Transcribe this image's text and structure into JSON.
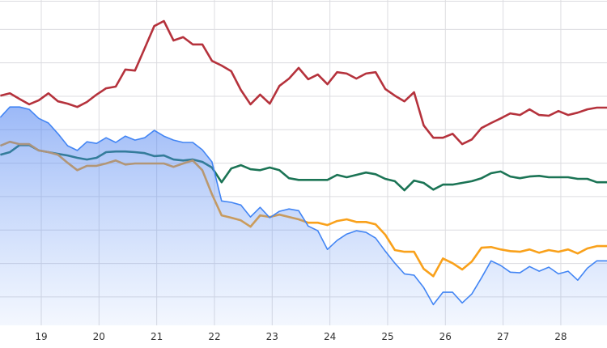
{
  "chart_data": {
    "type": "line",
    "title": "",
    "xlabel": "",
    "ylabel": "",
    "x_start": 18.29,
    "x_step": 0.1667,
    "xlim": [
      18.285,
      28.8
    ],
    "ylim": [
      1.5,
      98.8
    ],
    "grid": true,
    "x_ticks": [
      19,
      20,
      21,
      22,
      23,
      24,
      25,
      26,
      27,
      28
    ],
    "x_tick_labels": [
      "19",
      "20",
      "21",
      "22",
      "23",
      "24",
      "25",
      "26",
      "27",
      "28"
    ],
    "y_gridlines": [
      10,
      20,
      30,
      40,
      50,
      60,
      70,
      80,
      90
    ],
    "series": [
      {
        "name": "red",
        "kind": "line",
        "color": "#b5323c",
        "values": [
          70.2,
          70.9,
          69.2,
          67.6,
          68.8,
          70.9,
          68.5,
          67.8,
          66.8,
          68.3,
          70.5,
          72.4,
          72.9,
          78.0,
          77.7,
          84.3,
          91.0,
          92.5,
          86.7,
          87.7,
          85.5,
          85.5,
          80.6,
          79.2,
          77.5,
          71.9,
          67.6,
          70.5,
          67.8,
          73.1,
          75.3,
          78.5,
          75.1,
          76.5,
          73.6,
          77.2,
          76.8,
          75.3,
          76.8,
          77.2,
          72.2,
          70.2,
          68.5,
          71.2,
          61.3,
          57.6,
          57.6,
          58.8,
          55.7,
          57.1,
          60.5,
          62.0,
          63.4,
          64.9,
          64.4,
          66.1,
          64.4,
          64.2,
          65.6,
          64.4,
          65.1,
          66.1,
          66.6
        ]
      },
      {
        "name": "green",
        "kind": "line",
        "color": "#1b7455",
        "values": [
          52.5,
          53.3,
          55.4,
          55.4,
          53.8,
          53.3,
          52.8,
          52.3,
          51.6,
          51.1,
          51.6,
          53.3,
          53.5,
          53.5,
          53.3,
          53.0,
          52.1,
          52.3,
          51.1,
          50.8,
          51.1,
          50.4,
          48.7,
          44.3,
          48.4,
          49.4,
          48.2,
          47.9,
          48.7,
          47.9,
          45.5,
          45.0,
          45.0,
          45.0,
          45.0,
          46.5,
          45.8,
          46.5,
          47.2,
          46.7,
          45.3,
          44.6,
          41.9,
          44.8,
          44.1,
          42.1,
          43.6,
          43.6,
          44.1,
          44.6,
          45.5,
          47.0,
          47.5,
          46.0,
          45.5,
          46.0,
          46.2,
          45.8,
          45.8,
          45.8,
          45.3,
          45.3,
          44.3
        ]
      },
      {
        "name": "orange",
        "kind": "line",
        "color": "#f9a11b",
        "values": [
          55.2,
          56.4,
          55.7,
          55.7,
          53.8,
          53.3,
          52.5,
          50.1,
          47.9,
          49.2,
          49.2,
          49.9,
          50.8,
          49.6,
          49.9,
          49.9,
          49.9,
          49.9,
          48.9,
          49.9,
          50.8,
          47.9,
          40.7,
          34.4,
          33.7,
          32.9,
          31.0,
          34.4,
          33.9,
          34.6,
          33.9,
          33.2,
          32.2,
          32.2,
          31.5,
          32.7,
          33.2,
          32.4,
          32.4,
          31.7,
          28.6,
          24.0,
          23.5,
          23.5,
          18.4,
          16.2,
          21.5,
          20.1,
          18.2,
          20.6,
          24.7,
          24.9,
          24.2,
          23.7,
          23.5,
          24.2,
          23.2,
          24.0,
          23.5,
          24.2,
          23.0,
          24.5,
          25.2
        ]
      },
      {
        "name": "blue",
        "kind": "area",
        "color": "#4285f4",
        "values": [
          63.7,
          66.8,
          66.8,
          66.1,
          63.4,
          62.0,
          58.8,
          55.2,
          53.8,
          56.4,
          55.9,
          57.6,
          56.2,
          58.1,
          56.9,
          57.6,
          59.8,
          58.1,
          56.9,
          56.2,
          56.2,
          54.0,
          50.4,
          38.7,
          38.3,
          37.5,
          33.9,
          36.8,
          33.7,
          35.6,
          36.3,
          35.8,
          31.2,
          29.8,
          24.2,
          26.9,
          28.8,
          29.8,
          29.3,
          27.6,
          23.7,
          20.1,
          16.9,
          16.5,
          12.8,
          7.7,
          11.4,
          11.4,
          8.2,
          10.9,
          15.7,
          20.8,
          19.4,
          17.4,
          17.2,
          19.1,
          17.7,
          18.9,
          16.9,
          17.7,
          15.0,
          18.6,
          20.8
        ]
      }
    ]
  }
}
